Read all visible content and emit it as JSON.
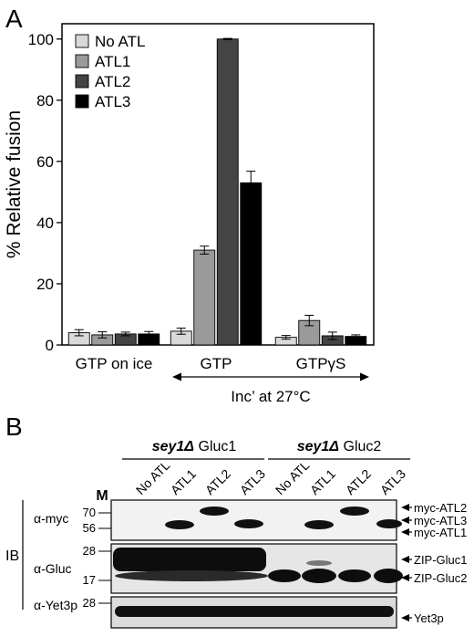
{
  "panel_a": {
    "label": "A",
    "chart_data": {
      "type": "bar",
      "ylabel": "% Relative fusion",
      "ylim": [
        0,
        105
      ],
      "yticks": [
        0,
        20,
        40,
        60,
        80,
        100
      ],
      "groups": [
        "GTP on ice",
        "GTP",
        "GTPγS"
      ],
      "legend_position": "top-left",
      "series": [
        {
          "name": "No ATL",
          "color": "#d9d9d9",
          "values": [
            4.0,
            4.5,
            2.5
          ],
          "errors": [
            1.0,
            1.0,
            0.6
          ]
        },
        {
          "name": "ATL1",
          "color": "#9a9a9a",
          "values": [
            3.3,
            31.0,
            8.0
          ],
          "errors": [
            1.0,
            1.3,
            1.7
          ]
        },
        {
          "name": "ATL2",
          "color": "#444444",
          "values": [
            3.6,
            100.0,
            3.0
          ],
          "errors": [
            0.6,
            0.2,
            1.2
          ]
        },
        {
          "name": "ATL3",
          "color": "#000000",
          "values": [
            3.6,
            53.0,
            2.8
          ],
          "errors": [
            0.8,
            3.8,
            0.5
          ]
        }
      ],
      "annotation": "Inc’ at 27°C"
    }
  },
  "panel_b": {
    "label": "B",
    "strain_headers": [
      {
        "italic": "sey1Δ",
        "rest": " Gluc1"
      },
      {
        "italic": "sey1Δ",
        "rest": " Gluc2"
      }
    ],
    "lane_marker": "M",
    "lanes": [
      "No ATL",
      "ATL1",
      "ATL2",
      "ATL3",
      "No ATL",
      "ATL1",
      "ATL2",
      "ATL3"
    ],
    "ib_label": "IB",
    "blots": [
      {
        "antibody": "α-myc",
        "markers": [
          "70",
          "56"
        ],
        "bands": [
          "myc-ATL2",
          "myc-ATL3",
          "myc-ATL1"
        ]
      },
      {
        "antibody": "α-Gluc",
        "markers": [
          "28",
          "17"
        ],
        "bands": [
          "ZIP-Gluc1",
          "ZIP-Gluc2"
        ]
      },
      {
        "antibody": "α-Yet3p",
        "markers": [
          "28"
        ],
        "bands": [
          "Yet3p"
        ]
      }
    ]
  }
}
